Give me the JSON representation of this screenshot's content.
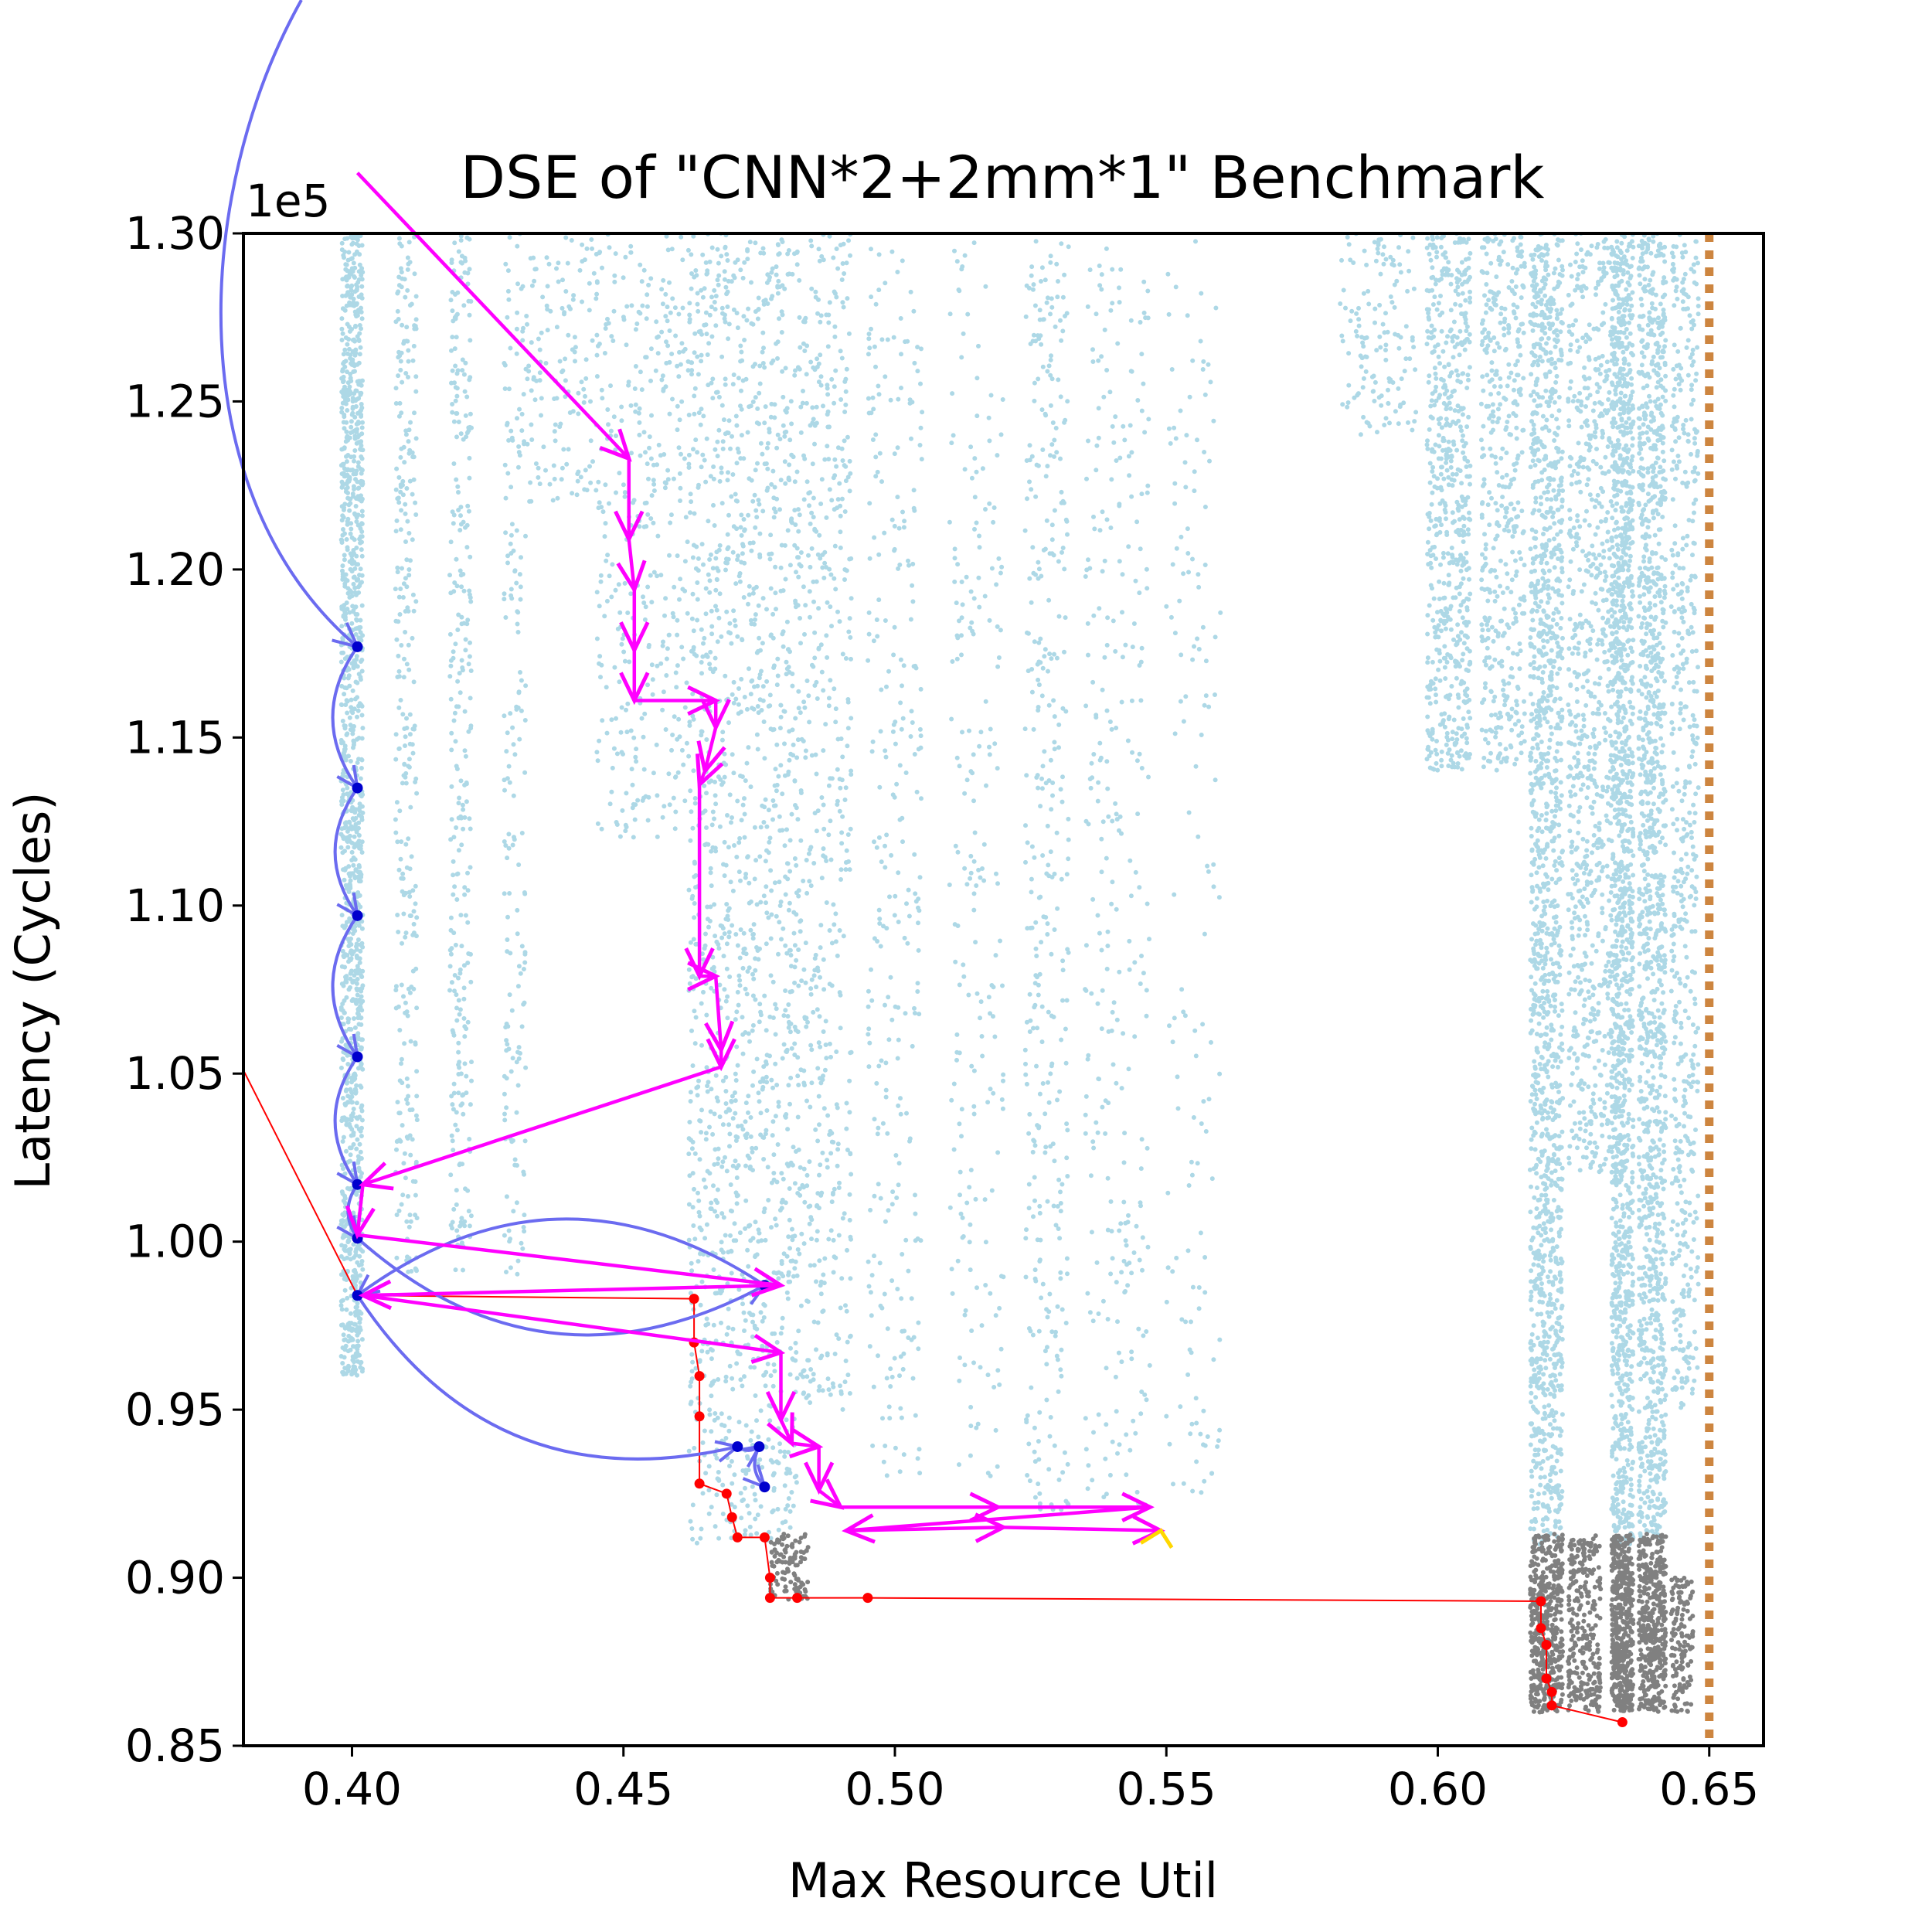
{
  "chart_data": {
    "type": "scatter",
    "title": "DSE of \"CNN*2+2mm*1\" Benchmark",
    "xlabel": "Max Resource Util",
    "ylabel": "Latency (Cycles)",
    "y_offset_label": "1e5",
    "xlim": [
      0.38,
      0.66
    ],
    "ylim": [
      0.85,
      1.3
    ],
    "xticks": [
      "0.40",
      "0.45",
      "0.50",
      "0.55",
      "0.60",
      "0.65"
    ],
    "yticks": [
      "0.85",
      "0.90",
      "0.95",
      "1.00",
      "1.05",
      "1.10",
      "1.15",
      "1.20",
      "1.25",
      "1.30"
    ],
    "grid": false,
    "resource_limit_x": 0.65,
    "colors": {
      "explored": "#add8e6",
      "feasible": "#808080",
      "pareto": "#ff0000",
      "path_magenta": "#ff00ff",
      "path_blue": "#6b6bf0",
      "limit": "#cd853f",
      "final": "#ffd700"
    },
    "explored_bands": [
      {
        "x": [
          0.398,
          0.402
        ],
        "y": [
          0.96,
          1.3
        ],
        "density": 1.0
      },
      {
        "x": [
          0.408,
          0.412
        ],
        "y": [
          0.99,
          1.3
        ],
        "density": 0.25
      },
      {
        "x": [
          0.418,
          0.422
        ],
        "y": [
          0.99,
          1.3
        ],
        "density": 0.25
      },
      {
        "x": [
          0.428,
          0.432
        ],
        "y": [
          0.99,
          1.3
        ],
        "density": 0.15
      },
      {
        "x": [
          0.432,
          0.462
        ],
        "y": [
          1.22,
          1.3
        ],
        "density": 1.0
      },
      {
        "x": [
          0.445,
          0.462
        ],
        "y": [
          1.12,
          1.22
        ],
        "density": 0.5
      },
      {
        "x": [
          0.462,
          0.482
        ],
        "y": [
          0.91,
          1.3
        ],
        "density": 1.0
      },
      {
        "x": [
          0.482,
          0.492
        ],
        "y": [
          0.95,
          1.3
        ],
        "density": 0.4
      },
      {
        "x": [
          0.495,
          0.505
        ],
        "y": [
          0.93,
          1.3
        ],
        "density": 0.2
      },
      {
        "x": [
          0.51,
          0.52
        ],
        "y": [
          0.93,
          1.3
        ],
        "density": 0.15
      },
      {
        "x": [
          0.524,
          0.532
        ],
        "y": [
          0.92,
          1.3
        ],
        "density": 0.25
      },
      {
        "x": [
          0.535,
          0.547
        ],
        "y": [
          0.92,
          1.3
        ],
        "density": 0.2
      },
      {
        "x": [
          0.55,
          0.56
        ],
        "y": [
          0.92,
          1.3
        ],
        "density": 0.1
      },
      {
        "x": [
          0.582,
          0.596
        ],
        "y": [
          1.24,
          1.3
        ],
        "density": 0.6
      },
      {
        "x": [
          0.598,
          0.606
        ],
        "y": [
          1.14,
          1.3
        ],
        "density": 1.0
      },
      {
        "x": [
          0.608,
          0.616
        ],
        "y": [
          1.14,
          1.3
        ],
        "density": 0.7
      },
      {
        "x": [
          0.617,
          0.623
        ],
        "y": [
          0.91,
          1.3
        ],
        "density": 1.0
      },
      {
        "x": [
          0.624,
          0.632
        ],
        "y": [
          1.02,
          1.3
        ],
        "density": 0.7
      },
      {
        "x": [
          0.632,
          0.636
        ],
        "y": [
          0.91,
          1.3
        ],
        "density": 1.0
      },
      {
        "x": [
          0.637,
          0.642
        ],
        "y": [
          0.91,
          1.3
        ],
        "density": 0.9
      },
      {
        "x": [
          0.643,
          0.648
        ],
        "y": [
          0.95,
          1.3
        ],
        "density": 0.4
      }
    ],
    "feasible_bands": [
      {
        "x": [
          0.477,
          0.484
        ],
        "y": [
          0.893,
          0.913
        ],
        "density": 0.6
      },
      {
        "x": [
          0.617,
          0.623
        ],
        "y": [
          0.86,
          0.913
        ],
        "density": 1.0
      },
      {
        "x": [
          0.624,
          0.63
        ],
        "y": [
          0.86,
          0.913
        ],
        "density": 0.6
      },
      {
        "x": [
          0.632,
          0.636
        ],
        "y": [
          0.86,
          0.913
        ],
        "density": 1.0
      },
      {
        "x": [
          0.637,
          0.642
        ],
        "y": [
          0.86,
          0.913
        ],
        "density": 0.9
      },
      {
        "x": [
          0.643,
          0.647
        ],
        "y": [
          0.86,
          0.9
        ],
        "density": 0.4
      }
    ],
    "pareto_front": [
      {
        "x": 0.38,
        "y": 1.051
      },
      {
        "x": 0.401,
        "y": 0.984
      },
      {
        "x": 0.463,
        "y": 0.983
      },
      {
        "x": 0.463,
        "y": 0.97
      },
      {
        "x": 0.464,
        "y": 0.96
      },
      {
        "x": 0.464,
        "y": 0.948
      },
      {
        "x": 0.464,
        "y": 0.928
      },
      {
        "x": 0.469,
        "y": 0.925
      },
      {
        "x": 0.47,
        "y": 0.918
      },
      {
        "x": 0.471,
        "y": 0.912
      },
      {
        "x": 0.476,
        "y": 0.912
      },
      {
        "x": 0.477,
        "y": 0.9
      },
      {
        "x": 0.477,
        "y": 0.894
      },
      {
        "x": 0.482,
        "y": 0.894
      },
      {
        "x": 0.495,
        "y": 0.894
      },
      {
        "x": 0.619,
        "y": 0.893
      },
      {
        "x": 0.619,
        "y": 0.885
      },
      {
        "x": 0.62,
        "y": 0.88
      },
      {
        "x": 0.62,
        "y": 0.87
      },
      {
        "x": 0.621,
        "y": 0.866
      },
      {
        "x": 0.621,
        "y": 0.862
      },
      {
        "x": 0.634,
        "y": 0.857
      }
    ],
    "magenta_path": [
      {
        "x": 0.401,
        "y": 1.318
      },
      {
        "x": 0.451,
        "y": 1.233
      },
      {
        "x": 0.451,
        "y": 1.209
      },
      {
        "x": 0.452,
        "y": 1.194
      },
      {
        "x": 0.452,
        "y": 1.176
      },
      {
        "x": 0.452,
        "y": 1.161
      },
      {
        "x": 0.467,
        "y": 1.161
      },
      {
        "x": 0.467,
        "y": 1.153
      },
      {
        "x": 0.465,
        "y": 1.14
      },
      {
        "x": 0.464,
        "y": 1.136
      },
      {
        "x": 0.464,
        "y": 1.079
      },
      {
        "x": 0.467,
        "y": 1.079
      },
      {
        "x": 0.468,
        "y": 1.057
      },
      {
        "x": 0.468,
        "y": 1.052
      },
      {
        "x": 0.402,
        "y": 1.017
      },
      {
        "x": 0.401,
        "y": 1.002
      },
      {
        "x": 0.479,
        "y": 0.987
      },
      {
        "x": 0.402,
        "y": 0.984
      },
      {
        "x": 0.479,
        "y": 0.967
      },
      {
        "x": 0.479,
        "y": 0.947
      },
      {
        "x": 0.481,
        "y": 0.94
      },
      {
        "x": 0.486,
        "y": 0.939
      },
      {
        "x": 0.486,
        "y": 0.926
      },
      {
        "x": 0.49,
        "y": 0.921
      },
      {
        "x": 0.519,
        "y": 0.921
      },
      {
        "x": 0.547,
        "y": 0.921
      },
      {
        "x": 0.491,
        "y": 0.914
      },
      {
        "x": 0.52,
        "y": 0.915
      },
      {
        "x": 0.549,
        "y": 0.914
      }
    ],
    "blue_path": [
      {
        "x": 0.401,
        "y": 1.177
      },
      {
        "x": 0.401,
        "y": 1.135
      },
      {
        "x": 0.401,
        "y": 1.097
      },
      {
        "x": 0.401,
        "y": 1.055
      },
      {
        "x": 0.401,
        "y": 1.017
      },
      {
        "x": 0.401,
        "y": 1.001
      },
      {
        "x": 0.476,
        "y": 0.987
      },
      {
        "x": 0.401,
        "y": 0.984
      },
      {
        "x": 0.471,
        "y": 0.939
      },
      {
        "x": 0.475,
        "y": 0.939
      },
      {
        "x": 0.476,
        "y": 0.927
      }
    ],
    "final_point": {
      "x": 0.549,
      "y": 0.914
    }
  }
}
